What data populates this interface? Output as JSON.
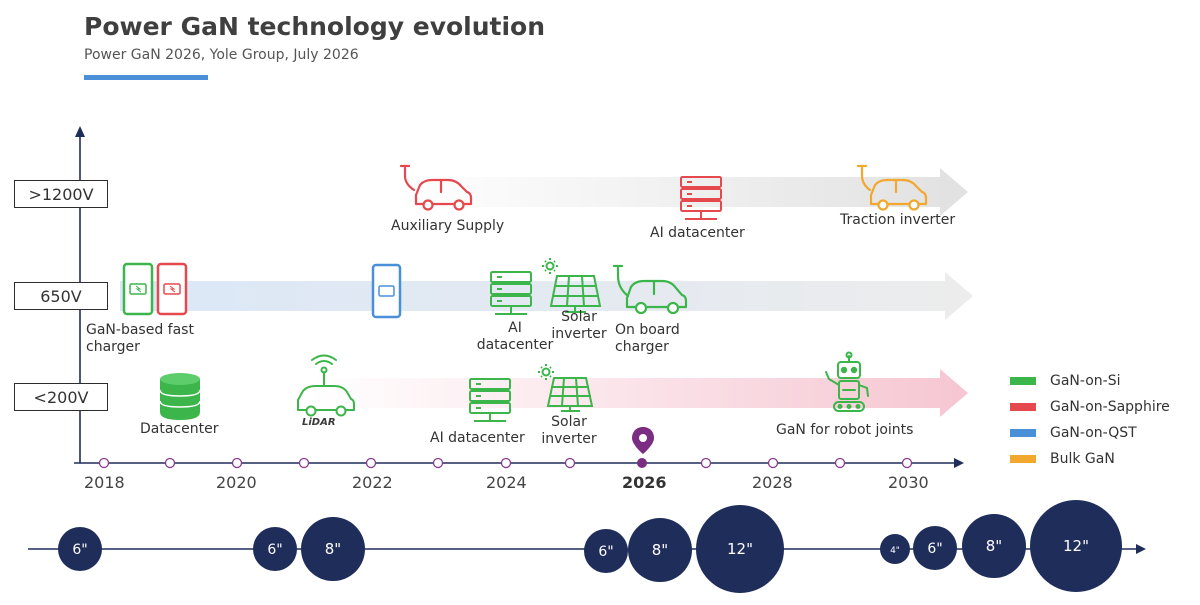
{
  "header": {
    "title": "Power GaN technology evolution",
    "subtitle": "Power GaN 2026, Yole Group, July 2026"
  },
  "voltage_levels": [
    ">1200V",
    "650V",
    "<200V"
  ],
  "years": [
    "2018",
    "2020",
    "2022",
    "2024",
    "2026",
    "2028",
    "2030"
  ],
  "applications": {
    "auxiliary_supply": "Auxiliary Supply",
    "ai_datacenter_high": "AI datacenter",
    "traction_inverter": "Traction inverter",
    "fast_charger": "GaN-based fast charger",
    "ai_datacenter_650": "AI datacenter",
    "solar_inverter_650": "Solar inverter",
    "on_board_charger": "On board charger",
    "datacenter": "Datacenter",
    "lidar": "LiDAR",
    "ai_datacenter_low": "AI datacenter",
    "solar_inverter_low": "Solar inverter",
    "robot_joints": "GaN for robot joints"
  },
  "legend": [
    {
      "label": "GaN-on-Si",
      "color": "#3cb54a"
    },
    {
      "label": "GaN-on-Sapphire",
      "color": "#e5484d"
    },
    {
      "label": "GaN-on-QST",
      "color": "#4a90d9"
    },
    {
      "label": "Bulk GaN",
      "color": "#f2a72e"
    }
  ],
  "wafers": [
    "6\"",
    "6\"",
    "8\"",
    "6\"",
    "8\"",
    "12\"",
    "4\"",
    "6\"",
    "8\"",
    "12\""
  ],
  "colors": {
    "wafer": "#1f2d5a",
    "axis": "#1f2d5a",
    "timeline_marker": "#7b2d83",
    "arrow_gray": "#e8e8e8",
    "arrow_blue": "#dde8f6",
    "arrow_pink": "#f7cfd8"
  }
}
